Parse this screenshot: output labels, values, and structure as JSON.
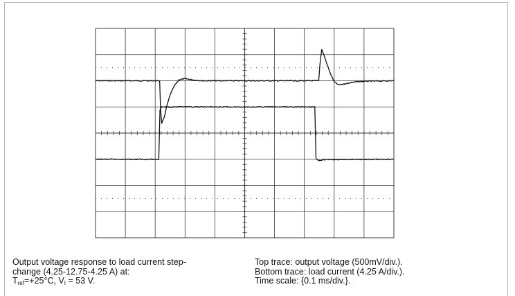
{
  "chart_data": {
    "type": "line",
    "title": "",
    "xlabel": "",
    "ylabel": "",
    "x_divisions": 10,
    "y_divisions": 8,
    "x_unit": "ms",
    "x_per_div": 0.1,
    "xlim": [
      0,
      1.0
    ],
    "grid": true,
    "series": [
      {
        "name": "Top trace: output voltage",
        "unit": "mV",
        "per_div": 500,
        "baseline_div": 2.0,
        "points": [
          [
            0.0,
            0
          ],
          [
            0.215,
            0
          ],
          [
            0.218,
            -540
          ],
          [
            0.222,
            -820
          ],
          [
            0.23,
            -700
          ],
          [
            0.24,
            -460
          ],
          [
            0.252,
            -240
          ],
          [
            0.265,
            -90
          ],
          [
            0.28,
            20
          ],
          [
            0.3,
            40
          ],
          [
            0.33,
            15
          ],
          [
            0.36,
            0
          ],
          [
            0.748,
            0
          ],
          [
            0.752,
            300
          ],
          [
            0.758,
            600
          ],
          [
            0.764,
            520
          ],
          [
            0.775,
            330
          ],
          [
            0.787,
            140
          ],
          [
            0.8,
            -20
          ],
          [
            0.815,
            -80
          ],
          [
            0.835,
            -60
          ],
          [
            0.865,
            -25
          ],
          [
            0.9,
            -10
          ],
          [
            1.0,
            0
          ]
        ]
      },
      {
        "name": "Bottom trace: load current",
        "unit": "A",
        "per_div": 4.25,
        "baseline_div": 6.0,
        "points": [
          [
            0.0,
            4.25
          ],
          [
            0.212,
            4.25
          ],
          [
            0.216,
            12.3
          ],
          [
            0.222,
            12.75
          ],
          [
            0.735,
            12.75
          ],
          [
            0.739,
            4.4
          ],
          [
            0.747,
            4.0
          ],
          [
            0.765,
            4.2
          ],
          [
            1.0,
            4.25
          ]
        ]
      }
    ]
  },
  "caption": {
    "left_line1": "Output voltage response to load current step-",
    "left_line2": "change (4.25-12.75-4.25 A) at:",
    "left_line3_T": "T",
    "left_line3_T_sub": "ref",
    "left_line3_mid": "=+25°C, V",
    "left_line3_V_sub": "I",
    "left_line3_end": " = 53 V.",
    "right_line1": "Top trace: output voltage (500mV/div.).",
    "right_line2": "Bottom trace: load current (4.25 A/div.).",
    "right_line3": "Time scale: {0.1 ms/div.}."
  },
  "colors": {
    "trace": "#111111",
    "grid": "#3a3a3a",
    "frame": "#b5b5b5",
    "dots": "#555555"
  }
}
